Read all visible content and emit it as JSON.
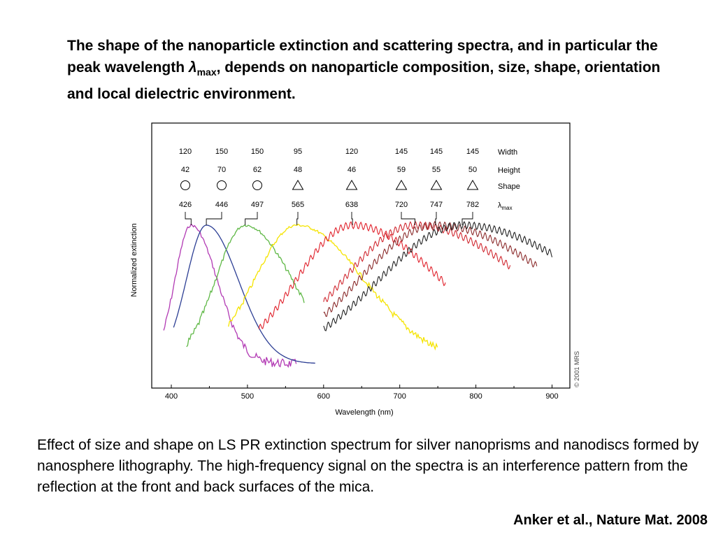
{
  "slide": {
    "title_part1": "The shape of the nanoparticle extinction and scattering spectra, and in particular the peak wavelength ",
    "lambda_symbol": "λ",
    "lambda_subscript": "max",
    "title_part2": ", depends on nanoparticle composition, size, shape, orientation and local dielectric environment.",
    "caption": "Effect of size and shape on LS PR extinction spectrum for silver nanoprisms and nanodiscs formed by nanosphere lithography. The high-frequency signal on the spectra is an interference pattern from the reflection at the front and back surfaces of the mica.",
    "citation": "Anker et al., Nature Mat. 2008"
  },
  "chart_data": {
    "type": "line",
    "xlabel": "Wavelength (nm)",
    "ylabel": "Normalized extinction",
    "xlim": [
      385,
      910
    ],
    "x_ticks": [
      400,
      500,
      600,
      700,
      800,
      900
    ],
    "copyright": "© 2001 MRS",
    "row_labels": {
      "width": "Width",
      "height": "Height",
      "shape": "Shape",
      "lambda": "λ",
      "lambda_sub": "max"
    },
    "series": [
      {
        "width": "120",
        "height": "42",
        "shape": "circle",
        "lambda_max": "426",
        "peak": 426,
        "x_start": 390,
        "x_end": 565,
        "color": "#b23ab4",
        "noise": "jitter"
      },
      {
        "width": "150",
        "height": "70",
        "shape": "circle",
        "lambda_max": "446",
        "peak": 446,
        "x_start": 403,
        "x_end": 590,
        "color": "#2c3e94",
        "noise": "none"
      },
      {
        "width": "150",
        "height": "62",
        "shape": "circle",
        "lambda_max": "497",
        "peak": 497,
        "x_start": 420,
        "x_end": 575,
        "color": "#5fb846",
        "noise": "jitter"
      },
      {
        "width": "95",
        "height": "48",
        "shape": "triangle",
        "lambda_max": "565",
        "peak": 565,
        "x_start": 475,
        "x_end": 750,
        "color": "#f5e400",
        "noise": "jitter"
      },
      {
        "width": "120",
        "height": "46",
        "shape": "triangle",
        "lambda_max": "638",
        "peak": 638,
        "x_start": 515,
        "x_end": 760,
        "color": "#e0202a",
        "noise": "fringe"
      },
      {
        "width": "145",
        "height": "59",
        "shape": "triangle",
        "lambda_max": "720",
        "peak": 720,
        "x_start": 600,
        "x_end": 845,
        "color": "#d02830",
        "noise": "fringe"
      },
      {
        "width": "145",
        "height": "55",
        "shape": "triangle",
        "lambda_max": "747",
        "peak": 747,
        "x_start": 600,
        "x_end": 880,
        "color": "#8a2a2a",
        "noise": "fringe"
      },
      {
        "width": "145",
        "height": "50",
        "shape": "triangle",
        "lambda_max": "782",
        "peak": 782,
        "x_start": 600,
        "x_end": 900,
        "color": "#222222",
        "noise": "fringe"
      }
    ]
  }
}
